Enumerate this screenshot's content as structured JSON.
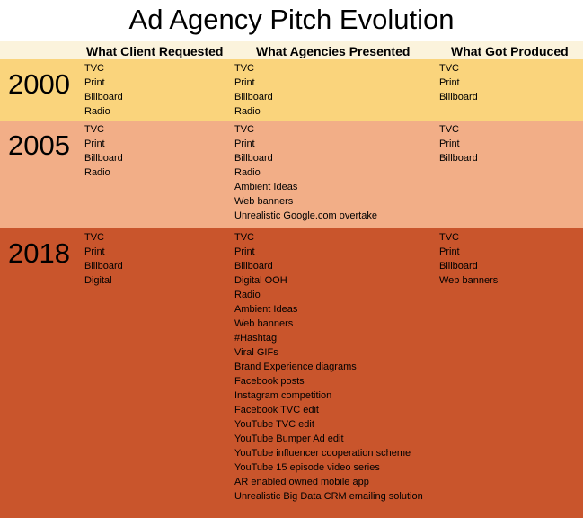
{
  "title": "Ad Agency Pitch Evolution",
  "headers": [
    "What Client Requested",
    "What Agencies Presented",
    "What Got Produced"
  ],
  "colors": {
    "row_2000": "#fad47c",
    "row_2005": "#f2ae87",
    "row_2018": "#c9552c",
    "header_bg": "#fbf3dc"
  },
  "rows": [
    {
      "year": "2000",
      "requested": [
        "TVC",
        "Print",
        "Billboard",
        "Radio"
      ],
      "presented": [
        "TVC",
        "Print",
        "Billboard",
        "Radio"
      ],
      "produced": [
        "TVC",
        "Print",
        "Billboard"
      ]
    },
    {
      "year": "2005",
      "requested": [
        "TVC",
        "Print",
        "Billboard",
        "Radio"
      ],
      "presented": [
        "TVC",
        "Print",
        "Billboard",
        "Radio",
        "Ambient Ideas",
        "Web banners",
        "Unrealistic Google.com overtake"
      ],
      "produced": [
        "TVC",
        "Print",
        "Billboard"
      ]
    },
    {
      "year": "2018",
      "requested": [
        "TVC",
        "Print",
        "Billboard",
        "Digital"
      ],
      "presented": [
        "TVC",
        "Print",
        "Billboard",
        "Digital OOH",
        "Radio",
        "Ambient Ideas",
        "Web banners",
        "#Hashtag",
        "Viral GIFs",
        "Brand Experience diagrams",
        "Facebook posts",
        "Instagram competition",
        "Facebook TVC edit",
        "YouTube TVC edit",
        "YouTube Bumper Ad edit",
        "YouTube influencer cooperation scheme",
        "YouTube 15 episode video series",
        "AR enabled owned mobile app",
        "Unrealistic Big Data CRM emailing solution"
      ],
      "produced": [
        "TVC",
        "Print",
        "Billboard",
        "Web banners"
      ]
    }
  ]
}
